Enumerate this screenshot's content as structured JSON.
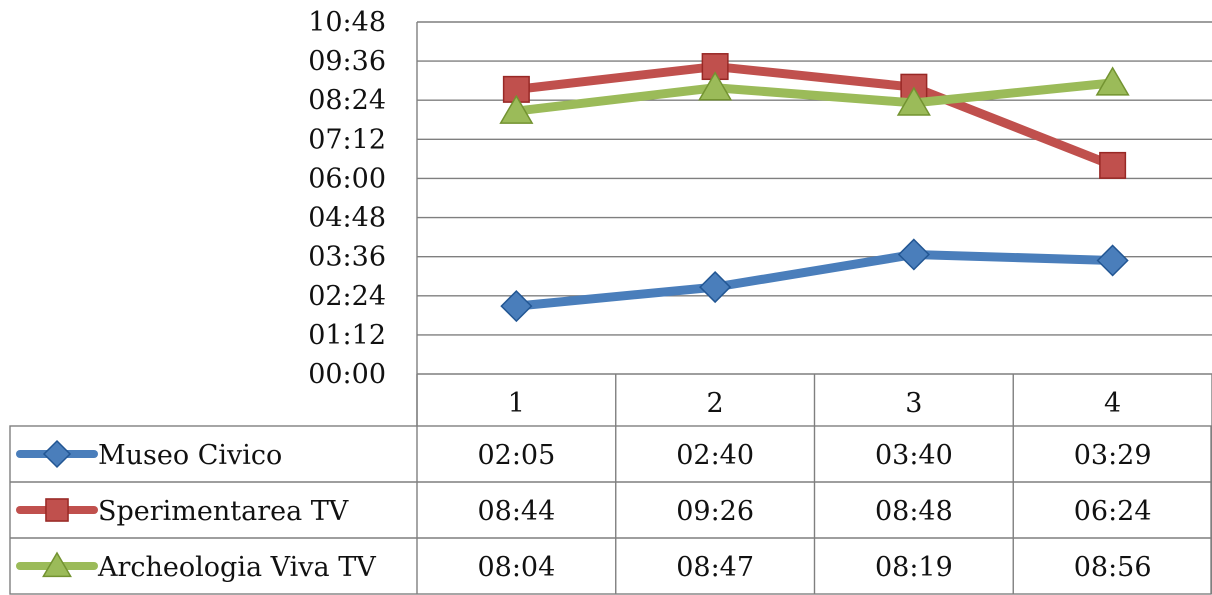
{
  "chart_data": {
    "type": "line",
    "title": "",
    "xlabel": "",
    "ylabel": "",
    "categories": [
      "1",
      "2",
      "3",
      "4"
    ],
    "y_ticks": [
      "00:00",
      "01:12",
      "02:24",
      "03:36",
      "04:48",
      "06:00",
      "07:12",
      "08:24",
      "09:36",
      "10:48"
    ],
    "ylim_minutes": [
      0,
      648
    ],
    "grid": true,
    "legend": "data-table",
    "series": [
      {
        "name": "Museo Civico",
        "values": [
          "02:05",
          "02:40",
          "03:40",
          "03:29"
        ],
        "color": "#4a7ebb",
        "marker": "diamond"
      },
      {
        "name": "Sperimentarea TV",
        "values": [
          "08:44",
          "09:26",
          "08:48",
          "06:24"
        ],
        "color": "#c0504d",
        "marker": "square"
      },
      {
        "name": "Archeologia Viva TV",
        "values": [
          "08:04",
          "08:47",
          "08:19",
          "08:56"
        ],
        "color": "#9bbb59",
        "marker": "triangle"
      }
    ]
  }
}
